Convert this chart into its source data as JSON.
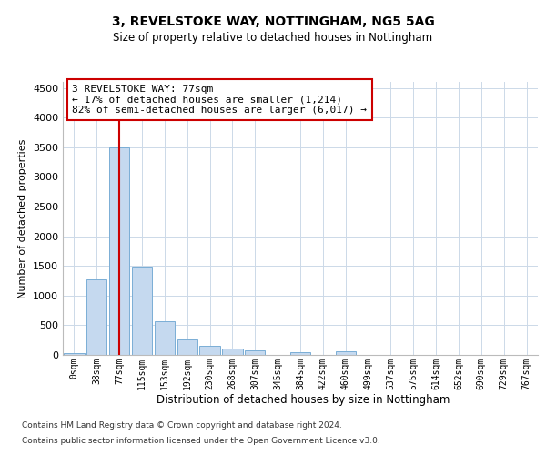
{
  "title1": "3, REVELSTOKE WAY, NOTTINGHAM, NG5 5AG",
  "title2": "Size of property relative to detached houses in Nottingham",
  "xlabel": "Distribution of detached houses by size in Nottingham",
  "ylabel": "Number of detached properties",
  "bar_color": "#c5d9ef",
  "bar_edge_color": "#7aaed6",
  "categories": [
    "0sqm",
    "38sqm",
    "77sqm",
    "115sqm",
    "153sqm",
    "192sqm",
    "230sqm",
    "268sqm",
    "307sqm",
    "345sqm",
    "384sqm",
    "422sqm",
    "460sqm",
    "499sqm",
    "537sqm",
    "575sqm",
    "614sqm",
    "652sqm",
    "690sqm",
    "729sqm",
    "767sqm"
  ],
  "values": [
    30,
    1280,
    3500,
    1480,
    575,
    260,
    150,
    100,
    75,
    0,
    50,
    0,
    55,
    0,
    0,
    0,
    0,
    0,
    0,
    0,
    0
  ],
  "ylim": [
    0,
    4600
  ],
  "yticks": [
    0,
    500,
    1000,
    1500,
    2000,
    2500,
    3000,
    3500,
    4000,
    4500
  ],
  "vline_x_idx": 2,
  "vline_color": "#cc0000",
  "annotation_text": "3 REVELSTOKE WAY: 77sqm\n← 17% of detached houses are smaller (1,214)\n82% of semi-detached houses are larger (6,017) →",
  "annotation_box_color": "#ffffff",
  "annotation_box_edge": "#cc0000",
  "footer1": "Contains HM Land Registry data © Crown copyright and database right 2024.",
  "footer2": "Contains public sector information licensed under the Open Government Licence v3.0.",
  "background_color": "#ffffff",
  "grid_color": "#ccd9e8"
}
